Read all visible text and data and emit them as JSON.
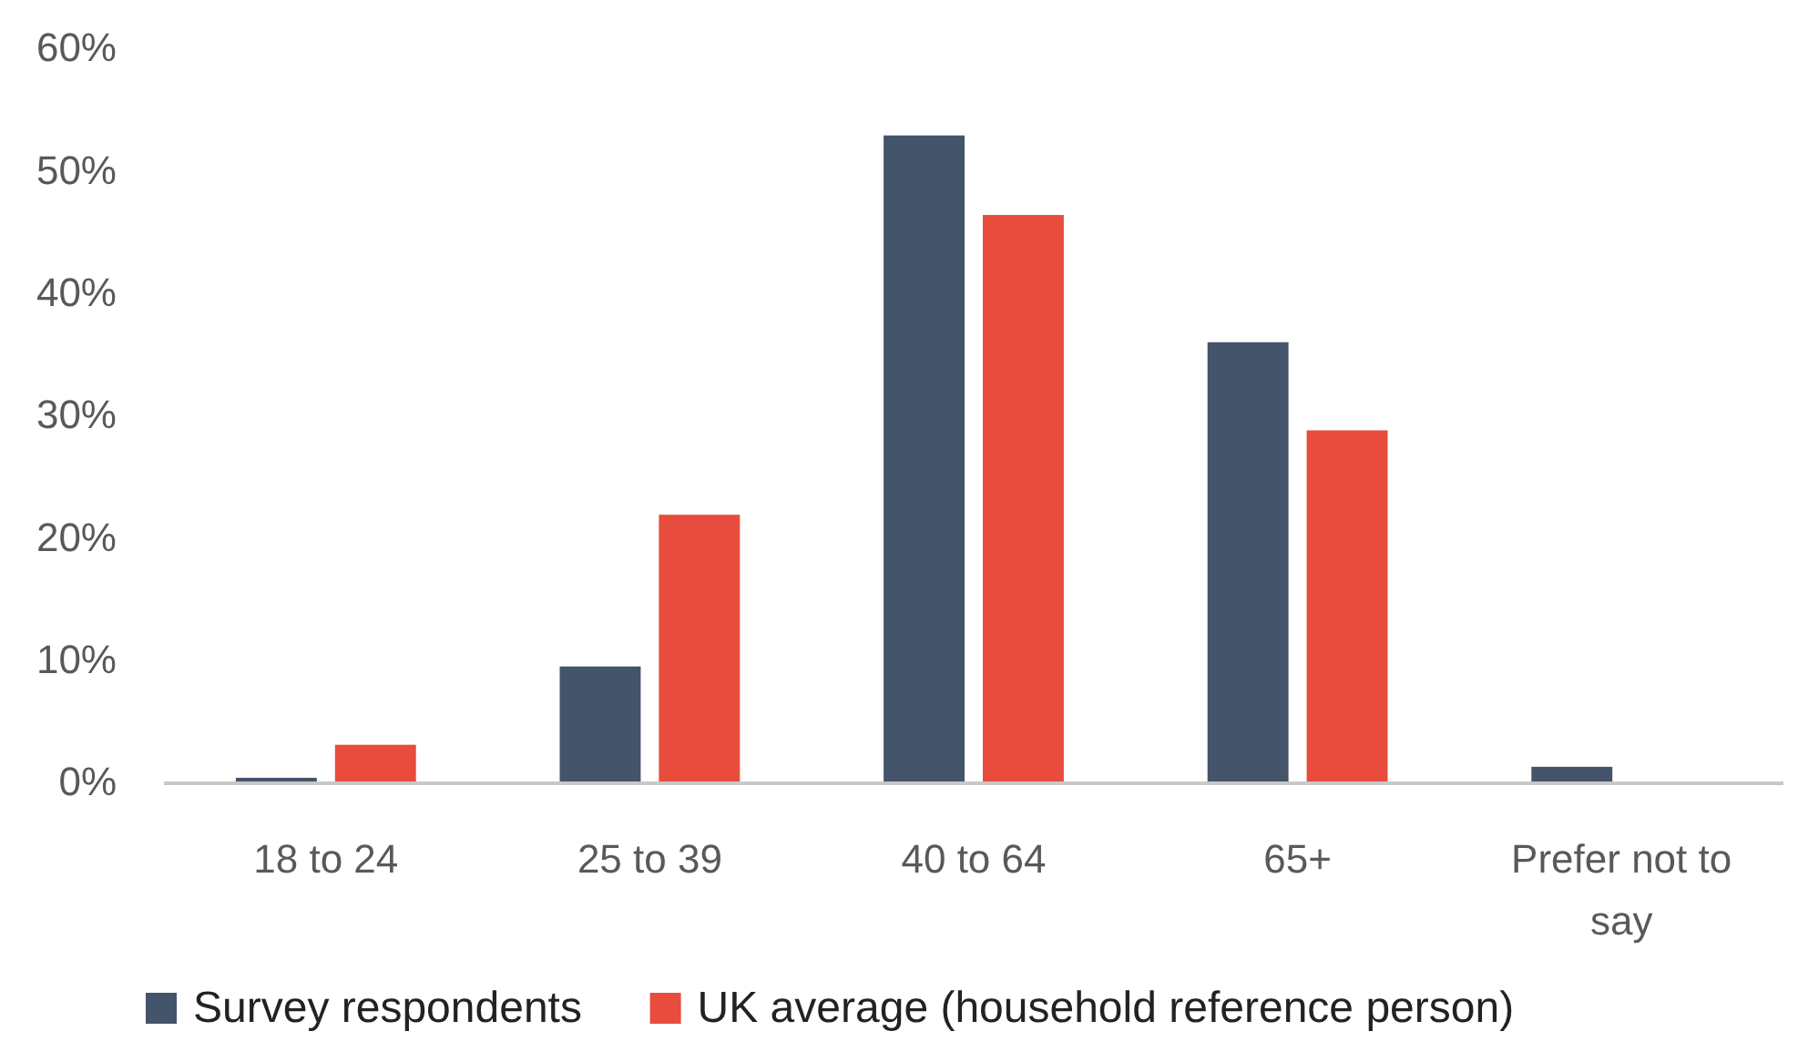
{
  "chart_data": {
    "type": "bar",
    "categories": [
      "18 to 24",
      "25 to 39",
      "40 to 64",
      "65+",
      "Prefer not to say"
    ],
    "series": [
      {
        "name": "Survey respondents",
        "color": "#44546a",
        "values": [
          0.3,
          9.4,
          52.8,
          35.9,
          1.2
        ]
      },
      {
        "name": "UK average (household reference person)",
        "color": "#e74c3c",
        "values": [
          3.0,
          21.8,
          46.3,
          28.7,
          null
        ]
      }
    ],
    "ylim": [
      0,
      60
    ],
    "yticks": [
      {
        "value": 0,
        "label": "0%"
      },
      {
        "value": 10,
        "label": "10%"
      },
      {
        "value": 20,
        "label": "20%"
      },
      {
        "value": 30,
        "label": "30%"
      },
      {
        "value": 40,
        "label": "40%"
      },
      {
        "value": 50,
        "label": "50%"
      },
      {
        "value": 60,
        "label": "60%"
      }
    ],
    "grid": false,
    "legend": "bottom"
  }
}
